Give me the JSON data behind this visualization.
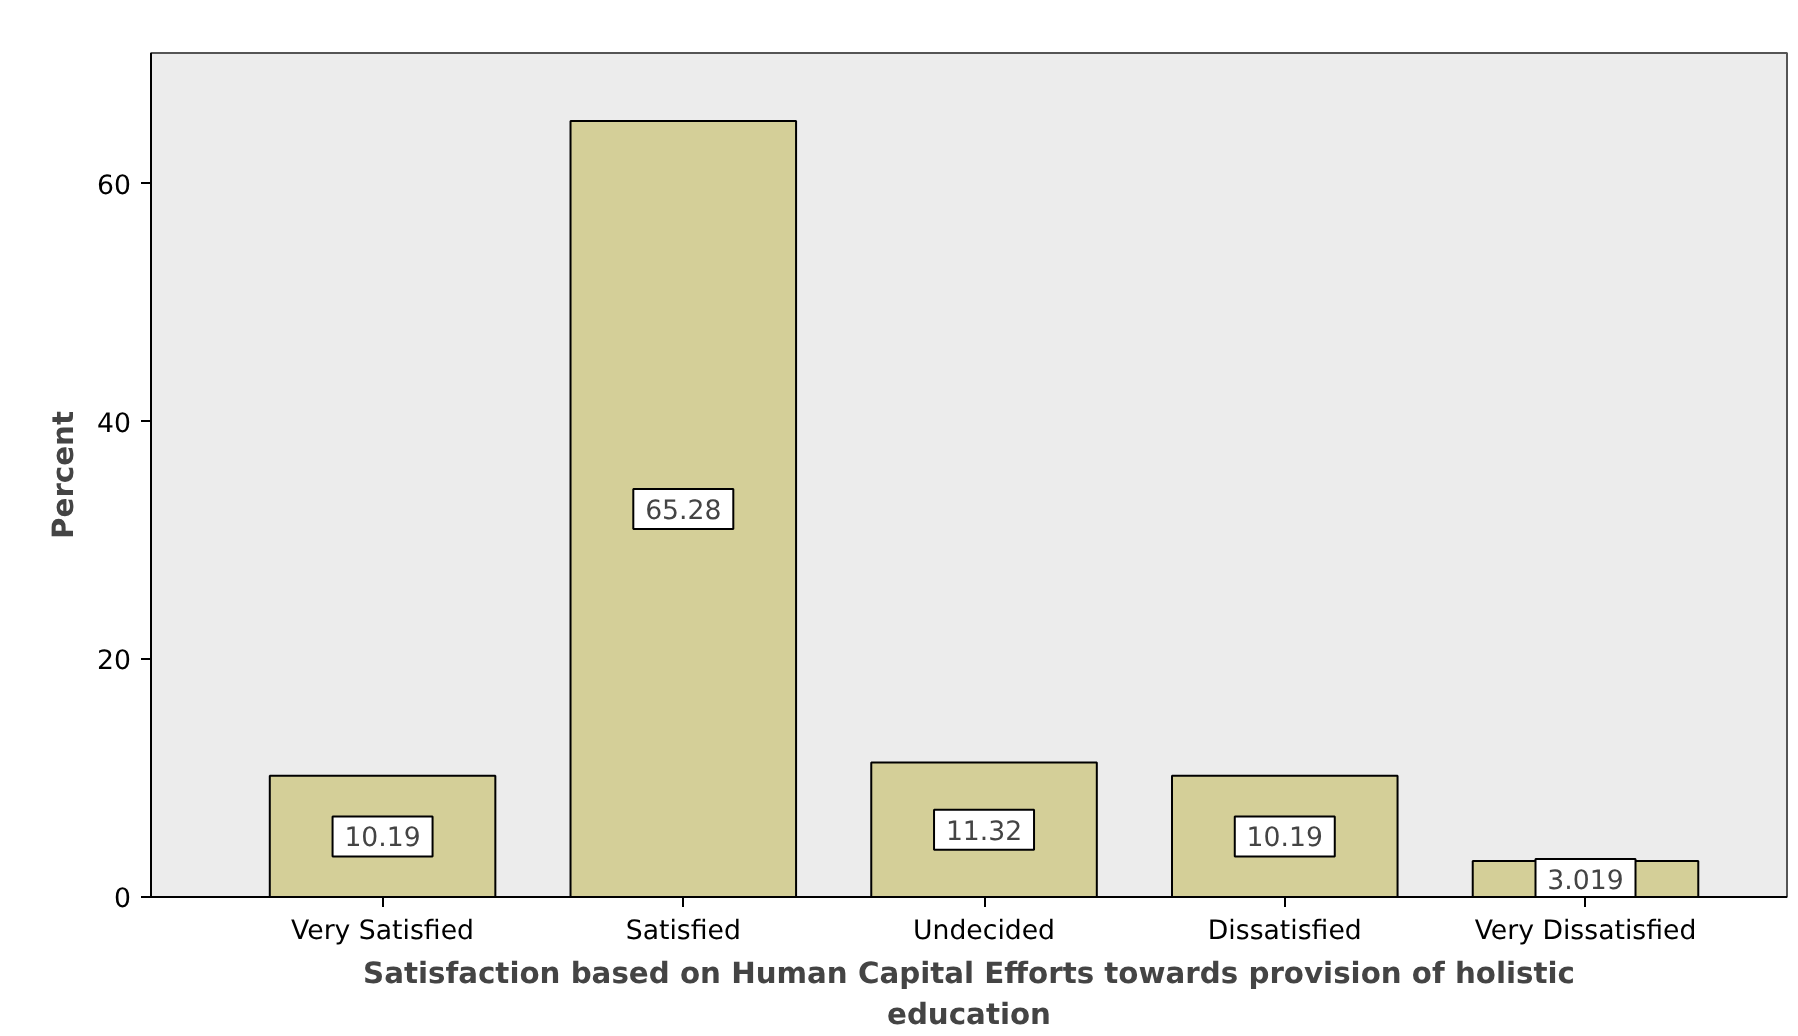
{
  "chart_data": {
    "type": "bar",
    "xlabel": "Satisfaction based on Human Capital Efforts towards provision of holistic education",
    "ylabel": "Percent",
    "categories": [
      "Very Satisfied",
      "Satisfied",
      "Undecided",
      "Dissatisfied",
      "Very Dissatisfied"
    ],
    "values": [
      10.19,
      65.28,
      11.32,
      10.19,
      3.019
    ],
    "color": "#d4cf98",
    "ylim": [
      0,
      71
    ],
    "yticks": [
      0,
      20,
      40,
      60
    ],
    "grid": false,
    "data_labels": true
  }
}
